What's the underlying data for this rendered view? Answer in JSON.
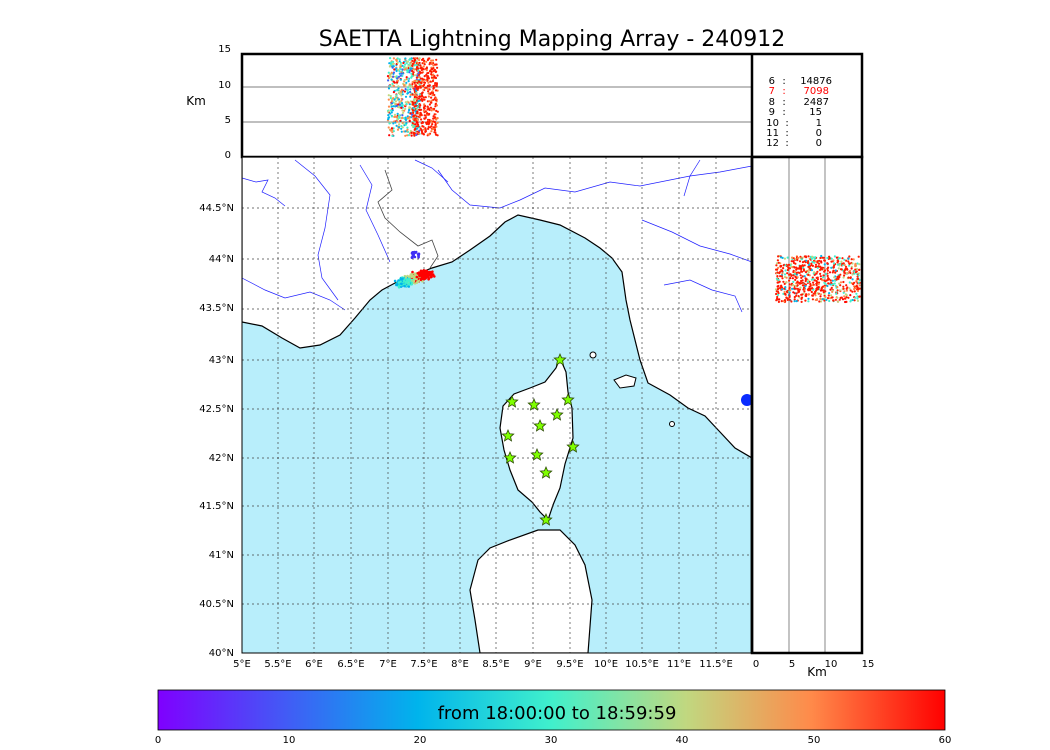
{
  "title": "SAETTA Lightning Mapping Array - 240912",
  "altitude_panel": {
    "unit": "Km",
    "y_ticks": [
      "0",
      "5",
      "10",
      "15"
    ]
  },
  "map_panel": {
    "lon_ticks": [
      "5°E",
      "5.5°E",
      "6°E",
      "6.5°E",
      "7°E",
      "7.5°E",
      "8°E",
      "8.5°E",
      "9°E",
      "9.5°E",
      "10°E",
      "10.5°E",
      "11°E",
      "11.5°E"
    ],
    "lat_ticks": [
      "40°N",
      "40.5°N",
      "41°N",
      "41.5°N",
      "42°N",
      "42.5°N",
      "43°N",
      "43.5°N",
      "44°N",
      "44.5°N"
    ]
  },
  "side_panel": {
    "unit": "Km",
    "x_ticks": [
      "0",
      "5",
      "10",
      "15"
    ]
  },
  "station_counts": [
    {
      "n": "6",
      "sep": ":",
      "count": "14876",
      "color": "#000000"
    },
    {
      "n": "7",
      "sep": ":",
      "count": "7098",
      "color": "#ff0000"
    },
    {
      "n": "8",
      "sep": ":",
      "count": "2487",
      "color": "#000000"
    },
    {
      "n": "9",
      "sep": ":",
      "count": "15",
      "color": "#000000"
    },
    {
      "n": "10",
      "sep": ":",
      "count": "1",
      "color": "#000000"
    },
    {
      "n": "11",
      "sep": ":",
      "count": "0",
      "color": "#000000"
    },
    {
      "n": "12",
      "sep": ":",
      "count": "0",
      "color": "#000000"
    }
  ],
  "colorbar": {
    "label": "from 18:00:00 to 18:59:59",
    "ticks": [
      "0",
      "10",
      "20",
      "30",
      "40",
      "50",
      "60"
    ]
  },
  "stations": {
    "count": 13,
    "color": "#7fff00",
    "icon": "star-icon"
  },
  "colors": {
    "sea": "#b8eefb",
    "land": "#ffffff",
    "rivers": "#2020ff",
    "grid": "#555555"
  }
}
